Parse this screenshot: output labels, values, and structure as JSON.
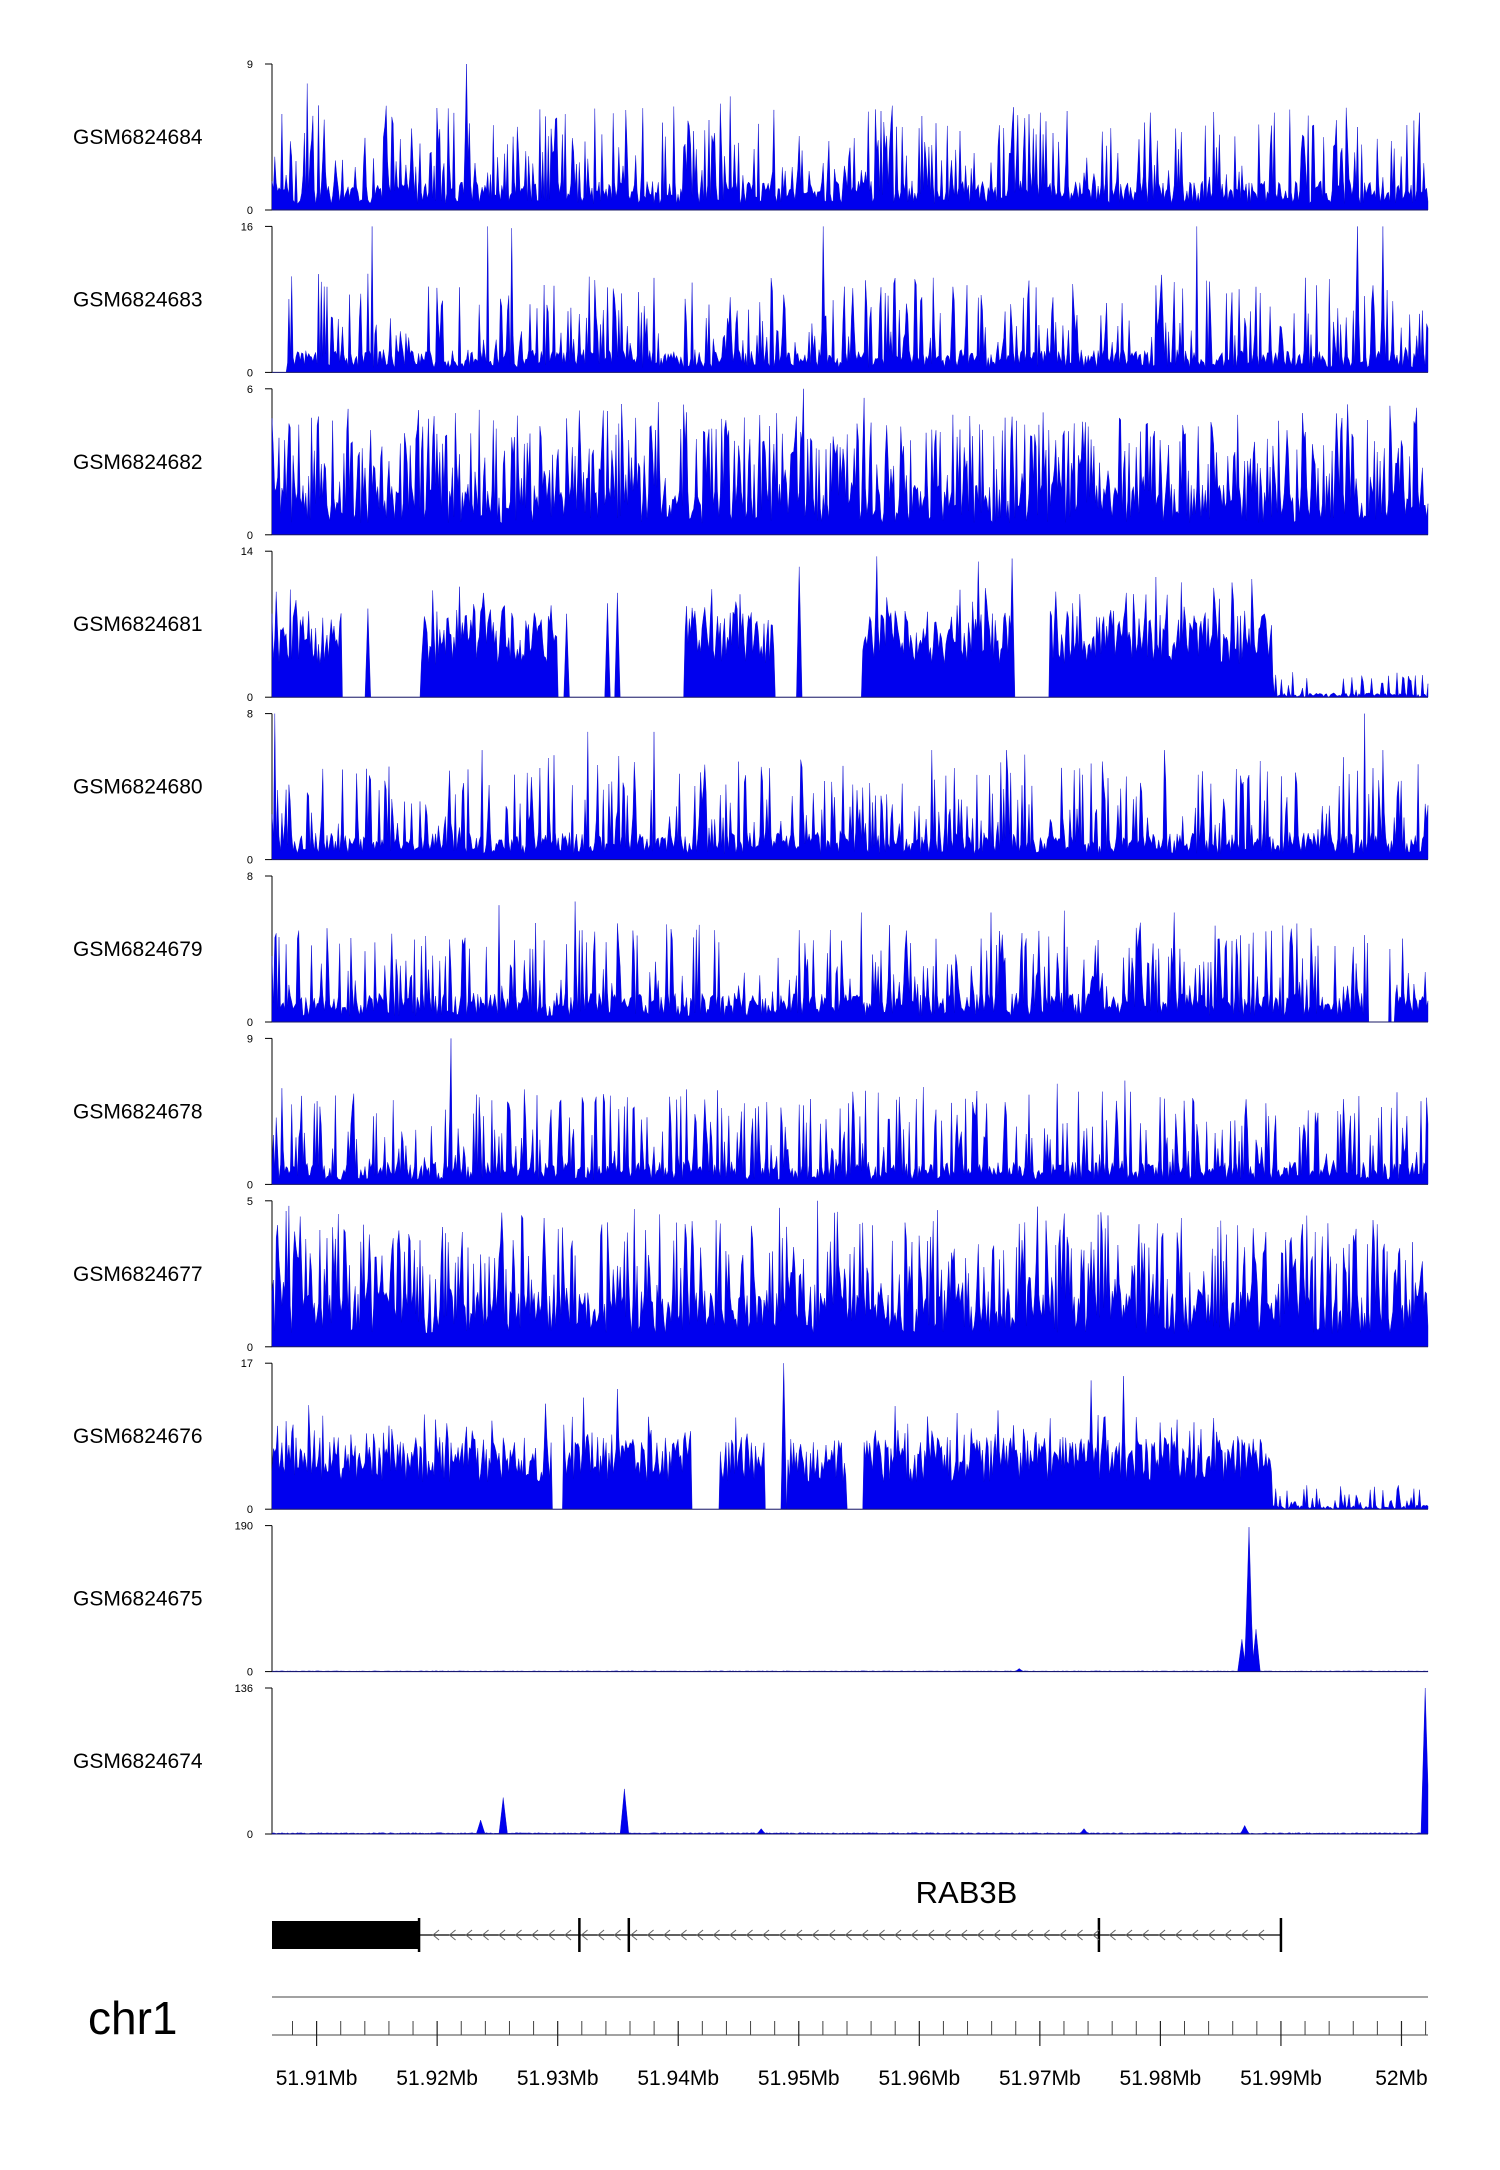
{
  "chart_data": {
    "type": "area",
    "chromosome": "chr1",
    "xlim": [
      51.9063,
      52.0022
    ],
    "x_unit": "Mb",
    "x_ticks": [
      51.91,
      51.92,
      51.93,
      51.94,
      51.95,
      51.96,
      51.97,
      51.98,
      51.99,
      52.0
    ],
    "x_tick_labels": [
      "51.91Mb",
      "51.92Mb",
      "51.93Mb",
      "51.94Mb",
      "51.95Mb",
      "51.96Mb",
      "51.97Mb",
      "51.98Mb",
      "51.99Mb",
      "52Mb"
    ],
    "fill_color": "#0000ee",
    "grid": false,
    "tracks": [
      {
        "name": "GSM6824684",
        "ymax": 9,
        "ymin": 0,
        "pattern": "sparse-spikes",
        "baseline": 1.8,
        "peaks": [
          [
            51.9092,
            7.8
          ],
          [
            51.9224,
            9.0
          ],
          [
            51.9443,
            7.0
          ],
          [
            51.9563,
            6.2
          ],
          [
            51.97,
            6.0
          ],
          [
            51.9894,
            6.0
          ],
          [
            51.9954,
            6.3
          ],
          [
            52.0015,
            6.0
          ]
        ]
      },
      {
        "name": "GSM6824683",
        "ymax": 16,
        "ymin": 0,
        "pattern": "sparse-spikes",
        "baseline": 2.5,
        "start": 51.9075,
        "peaks": [
          [
            51.9146,
            16.0
          ],
          [
            51.9242,
            16.0
          ],
          [
            51.9262,
            15.8
          ],
          [
            51.952,
            16.0
          ],
          [
            51.983,
            16.0
          ],
          [
            51.9964,
            16.0
          ],
          [
            51.9985,
            16.0
          ]
        ]
      },
      {
        "name": "GSM6824682",
        "ymax": 6,
        "ymin": 0,
        "pattern": "dense-spikes",
        "baseline": 1.6,
        "peaks": [
          [
            51.9215,
            5.0
          ],
          [
            51.9504,
            6.0
          ],
          [
            51.9573,
            4.5
          ],
          [
            51.9794,
            4.0
          ],
          [
            51.9918,
            5.0
          ],
          [
            51.999,
            5.3
          ]
        ]
      },
      {
        "name": "GSM6824681",
        "ymax": 14,
        "ymin": 0,
        "pattern": "broad-domains",
        "baseline": 7.0,
        "quiet_from": 51.9893,
        "quiet_level": 0.7,
        "gaps": [
          51.9121,
          51.9186,
          51.93,
          51.9405,
          51.948,
          51.9552,
          51.9675,
          51.9708
        ],
        "peaks": [
          [
            51.9143,
            8.5
          ],
          [
            51.9238,
            10.0
          ],
          [
            51.9307,
            8.0
          ],
          [
            51.9341,
            9.0
          ],
          [
            51.935,
            10.0
          ],
          [
            51.9448,
            8.0
          ],
          [
            51.95,
            12.5
          ],
          [
            51.9565,
            13.5
          ],
          [
            51.9649,
            13.0
          ],
          [
            51.9677,
            13.3
          ],
          [
            51.9727,
            9.0
          ],
          [
            51.9772,
            10.0
          ],
          [
            51.986,
            11.0
          ]
        ]
      },
      {
        "name": "GSM6824680",
        "ymax": 8,
        "ymin": 0,
        "pattern": "sparse-spikes",
        "baseline": 1.5,
        "peaks": [
          [
            51.9065,
            8.0
          ],
          [
            51.9237,
            6.0
          ],
          [
            51.9325,
            7.0
          ],
          [
            51.938,
            7.0
          ],
          [
            51.961,
            6.0
          ],
          [
            51.9672,
            6.0
          ],
          [
            51.9733,
            5.0
          ],
          [
            51.9803,
            6.0
          ],
          [
            51.9969,
            8.0
          ],
          [
            51.9985,
            6.0
          ]
        ]
      },
      {
        "name": "GSM6824679",
        "ymax": 8,
        "ymin": 0,
        "pattern": "sparse-spikes",
        "baseline": 1.6,
        "gaps": [
          51.9972,
          51.9995
        ],
        "peaks": [
          [
            51.9251,
            6.4
          ],
          [
            51.9314,
            6.6
          ],
          [
            51.9552,
            6.0
          ],
          [
            51.966,
            6.0
          ],
          [
            51.972,
            6.1
          ],
          [
            51.9811,
            6.0
          ],
          [
            51.9892,
            5.0
          ],
          [
            51.999,
            4.0
          ]
        ]
      },
      {
        "name": "GSM6824678",
        "ymax": 9,
        "ymin": 0,
        "pattern": "sparse-spikes",
        "baseline": 1.4,
        "peaks": [
          [
            51.9211,
            9.0
          ],
          [
            51.9283,
            5.5
          ],
          [
            51.9332,
            5.4
          ],
          [
            51.9433,
            5.8
          ],
          [
            51.9541,
            5.0
          ],
          [
            51.9603,
            6.0
          ],
          [
            51.9714,
            6.2
          ],
          [
            51.9771,
            6.4
          ],
          [
            51.9887,
            5.0
          ]
        ]
      },
      {
        "name": "GSM6824677",
        "ymax": 5,
        "ymin": 0,
        "pattern": "dense-spikes",
        "baseline": 1.5,
        "peaks": [
          [
            51.9103,
            4.0
          ],
          [
            51.927,
            4.5
          ],
          [
            51.9412,
            4.3
          ],
          [
            51.9516,
            5.0
          ],
          [
            51.9612,
            4.3
          ],
          [
            51.9698,
            4.8
          ],
          [
            51.9757,
            4.5
          ],
          [
            51.9848,
            4.1
          ],
          [
            51.9984,
            3.3
          ]
        ]
      },
      {
        "name": "GSM6824676",
        "ymax": 17,
        "ymin": 0,
        "pattern": "broad-domains",
        "baseline": 7.0,
        "quiet_from": 51.9893,
        "quiet_level": 0.8,
        "gaps": [
          51.9295,
          51.9305,
          51.9411,
          51.9434,
          51.9472,
          51.949,
          51.954,
          51.9554
        ],
        "peaks": [
          [
            51.9115,
            7.0
          ],
          [
            51.9208,
            10.0
          ],
          [
            51.9245,
            10.3
          ],
          [
            51.9321,
            13.0
          ],
          [
            51.935,
            14.0
          ],
          [
            51.9488,
            17.0
          ],
          [
            51.958,
            12.0
          ],
          [
            51.9665,
            11.5
          ],
          [
            51.9743,
            15.0
          ],
          [
            51.9769,
            15.5
          ],
          [
            51.9847,
            9.0
          ]
        ]
      },
      {
        "name": "GSM6824675",
        "ymax": 190,
        "ymin": 0,
        "pattern": "flat-with-peak",
        "baseline": 0.6,
        "peaks": [
          [
            51.9868,
            42.0
          ],
          [
            51.9874,
            188.0
          ],
          [
            51.9879,
            55.0
          ],
          [
            51.9683,
            4.0
          ]
        ]
      },
      {
        "name": "GSM6824674",
        "ymax": 136,
        "ymin": 0,
        "pattern": "flat-with-peak",
        "baseline": 0.8,
        "peaks": [
          [
            51.9236,
            13.0
          ],
          [
            51.9255,
            34.0
          ],
          [
            51.9355,
            42.0
          ],
          [
            51.987,
            8.0
          ],
          [
            51.9737,
            5.0
          ],
          [
            51.9469,
            5.0
          ],
          [
            52.002,
            136.0
          ]
        ]
      }
    ],
    "gene": {
      "name": "RAB3B",
      "strand": "-",
      "start": 51.9063,
      "end": 51.99,
      "thick_start": 51.9063,
      "thick_end": 51.9185,
      "exon_marks": [
        51.9185,
        51.9318,
        51.9359,
        51.9749,
        51.99
      ]
    }
  }
}
